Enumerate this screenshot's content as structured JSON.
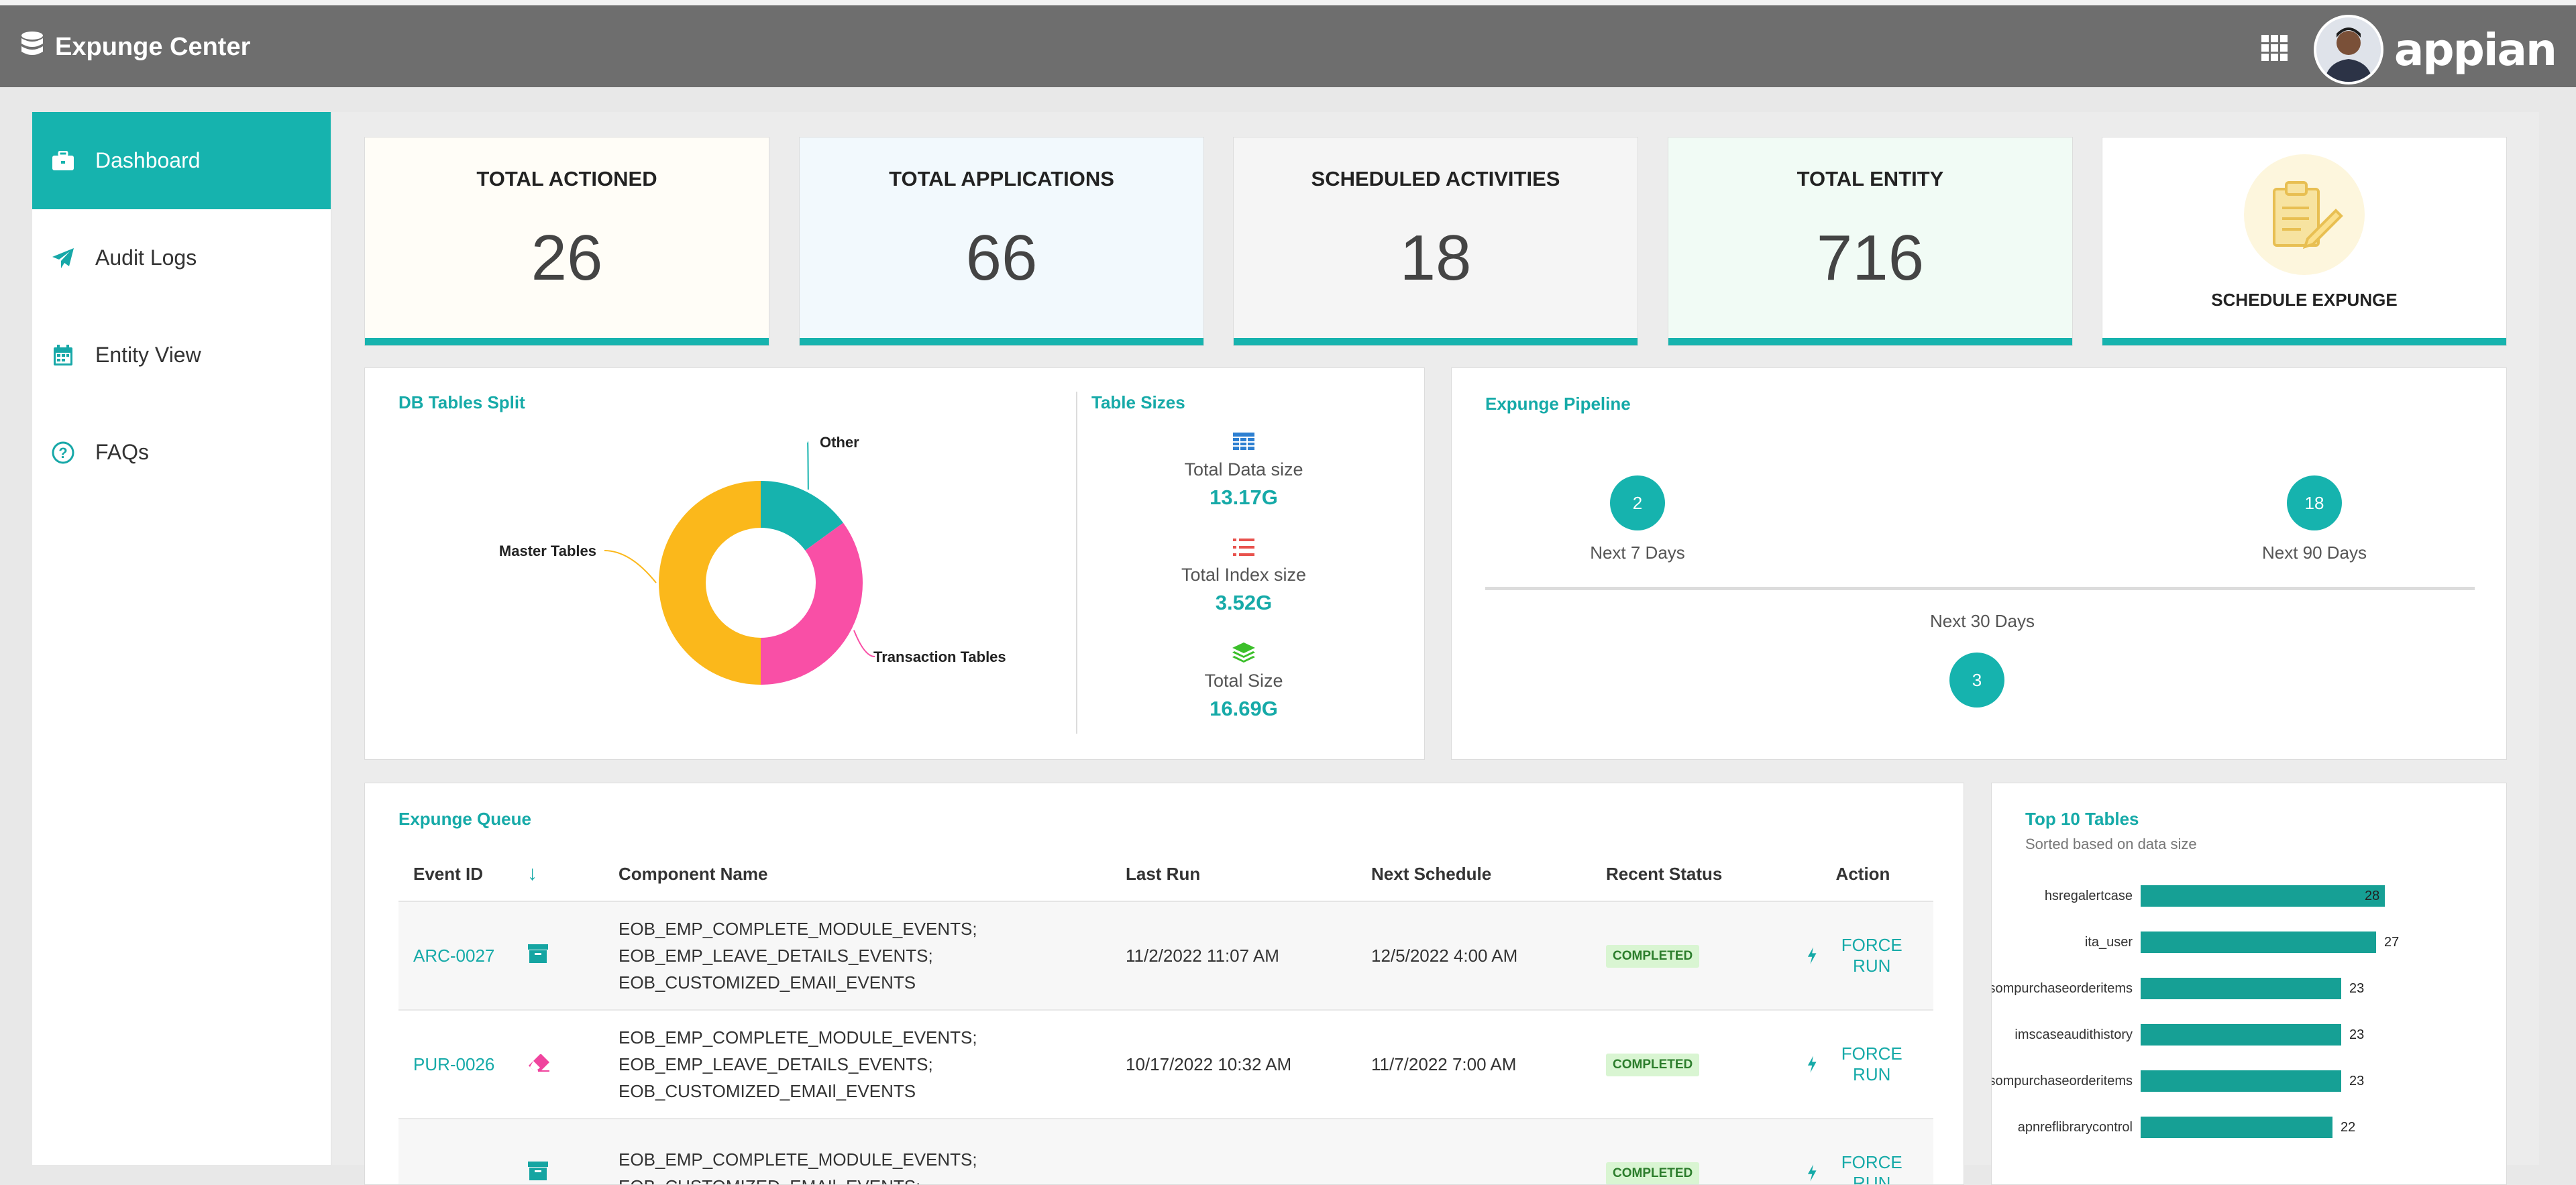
{
  "header": {
    "title": "Expunge Center",
    "logo_text": "appian"
  },
  "sidebar": {
    "items": [
      {
        "label": "Dashboard",
        "icon": "briefcase-icon",
        "active": true
      },
      {
        "label": "Audit Logs",
        "icon": "paper-plane-icon"
      },
      {
        "label": "Entity View",
        "icon": "calendar-icon"
      },
      {
        "label": "FAQs",
        "icon": "question-circle-icon"
      }
    ]
  },
  "stats": [
    {
      "label": "TOTAL ACTIONED",
      "value": "26",
      "bg": "#fffdf7"
    },
    {
      "label": "TOTAL APPLICATIONS",
      "value": "66",
      "bg": "#f2f9fd"
    },
    {
      "label": "SCHEDULED ACTIVITIES",
      "value": "18",
      "bg": "#f5f5f5"
    },
    {
      "label": "TOTAL ENTITY",
      "value": "716",
      "bg": "#f1fbf5"
    }
  ],
  "schedule": {
    "label": "SCHEDULE EXPUNGE"
  },
  "db_split": {
    "title": "DB Tables Split",
    "labels": {
      "other": "Other",
      "master": "Master Tables",
      "transaction": "Transaction Tables"
    }
  },
  "table_sizes": {
    "title": "Table Sizes",
    "items": [
      {
        "label": "Total Data size",
        "value": "13.17G",
        "icon": "table-icon"
      },
      {
        "label": "Total Index size",
        "value": "3.52G",
        "icon": "list-icon"
      },
      {
        "label": "Total Size",
        "value": "16.69G",
        "icon": "layers-icon"
      }
    ]
  },
  "pipeline": {
    "title": "Expunge Pipeline",
    "next7": {
      "value": "2",
      "label": "Next 7 Days"
    },
    "next90": {
      "value": "18",
      "label": "Next 90 Days"
    },
    "next30": {
      "value": "3",
      "label": "Next 30 Days"
    }
  },
  "queue": {
    "title": "Expunge Queue",
    "columns": [
      "Event ID",
      "Component Name",
      "Last Run",
      "Next Schedule",
      "Recent Status",
      "Action"
    ],
    "rows": [
      {
        "id": "ARC-0027",
        "icon": "archive-icon",
        "components": [
          "EOB_EMP_COMPLETE_MODULE_EVENTS;",
          "EOB_EMP_LEAVE_DETAILS_EVENTS;",
          "EOB_CUSTOMIZED_EMAIl_EVENTS"
        ],
        "last_run": "11/2/2022 11:07 AM",
        "next_schedule": "12/5/2022 4:00 AM",
        "status": "COMPLETED",
        "action": "FORCE RUN"
      },
      {
        "id": "PUR-0026",
        "icon": "eraser-icon",
        "components": [
          "EOB_EMP_COMPLETE_MODULE_EVENTS;",
          "EOB_EMP_LEAVE_DETAILS_EVENTS;",
          "EOB_CUSTOMIZED_EMAIl_EVENTS"
        ],
        "last_run": "10/17/2022 10:32 AM",
        "next_schedule": "11/7/2022 7:00 AM",
        "status": "COMPLETED",
        "action": "FORCE RUN"
      },
      {
        "id": "",
        "icon": "archive-icon",
        "components": [
          "EOB_EMP_COMPLETE_MODULE_EVENTS;",
          "EOB_CUSTOMIZED_EMAIl_EVENTS;"
        ],
        "last_run": "",
        "next_schedule": "",
        "status": "COMPLETED",
        "action": "FORCE RUN"
      }
    ]
  },
  "top10": {
    "title": "Top 10 Tables",
    "subtitle": "Sorted based on data size"
  },
  "chart_data": [
    {
      "type": "pie",
      "title": "DB Tables Split",
      "categories": [
        "Other",
        "Transaction Tables",
        "Master Tables"
      ],
      "values": [
        15,
        35,
        50
      ],
      "colors": [
        "#16b3ae",
        "#f94fa6",
        "#fbb81b"
      ]
    },
    {
      "type": "bar",
      "title": "Top 10 Tables",
      "categories": [
        "hsregalertcase",
        "ita_user",
        "dusompurchaseorderitems",
        "imscaseaudithistory",
        "sompurchaseorderitems",
        "apnreflibrarycontrol"
      ],
      "values": [
        28,
        27,
        23,
        23,
        23,
        22
      ],
      "color": "#16a095"
    }
  ]
}
